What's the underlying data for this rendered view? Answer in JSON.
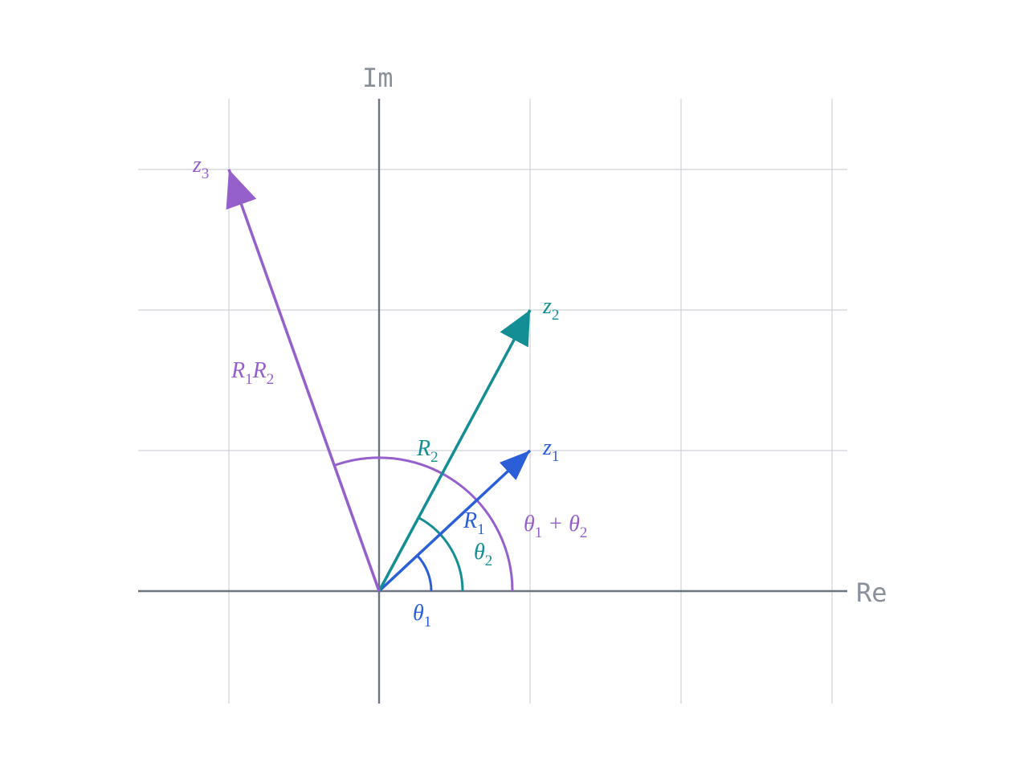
{
  "axes": {
    "x_label": "Re",
    "y_label": "Im"
  },
  "vectors": [
    {
      "label": [
        "z",
        "1"
      ],
      "length_label": [
        "R",
        "1"
      ],
      "angle_label": [
        "θ",
        "1"
      ]
    },
    {
      "label": [
        "z",
        "2"
      ],
      "length_label": [
        "R",
        "2"
      ],
      "angle_label": [
        "θ",
        "2"
      ]
    },
    {
      "label": [
        "z",
        "3"
      ],
      "length_label": [
        "R",
        "1",
        "R",
        "2"
      ],
      "angle_label": [
        "θ",
        "1",
        " + θ",
        "2"
      ]
    }
  ]
}
